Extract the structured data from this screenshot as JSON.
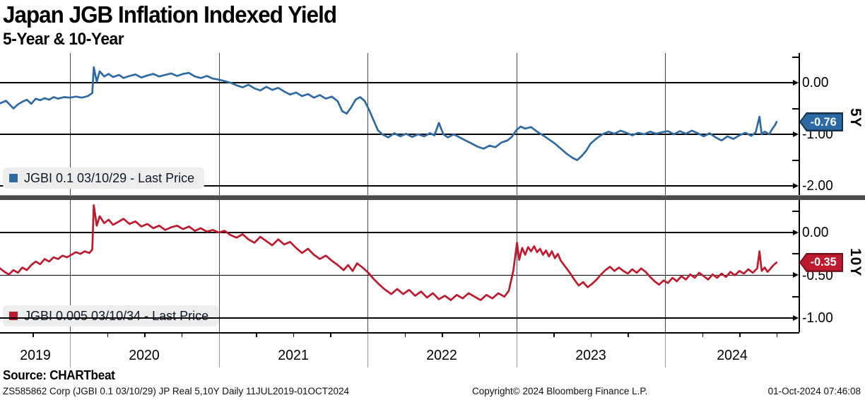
{
  "header": {
    "title": "Japan JGB Inflation Indexed Yield",
    "subtitle": "5-Year & 10-Year"
  },
  "footer": {
    "source": "Source: CHARTbeat",
    "meta": "ZS585862 Corp (JGBI 0.1 03/10/29) JP Real 5,10Y  Daily 11JUL2019-01OCT2024",
    "copyright": "Copyright© 2024 Bloomberg Finance L.P.",
    "datetime": "01-Oct-2024 07:46:08"
  },
  "colors": {
    "blue": "#2d6aa3",
    "blue_border": "#16314d",
    "red": "#bd1a2d",
    "red_border": "#7c0f1d",
    "grid_vertical": "#4a4a4a",
    "axis": "#000000",
    "legend_bg": "#ededed",
    "separator": "#4b4b4e"
  },
  "x_axis": {
    "year_labels": [
      "2019",
      "2020",
      "2021",
      "2022",
      "2023",
      "2024"
    ],
    "range_note": "11JUL2019-01OCT2024",
    "minor_tick_interval_years": 0.25
  },
  "chart_data": [
    {
      "type": "line",
      "panel": "top",
      "name": "JGBI 0.1 03/10/29 - Last Price",
      "axis_label": "5Y",
      "last_price": "-0.76",
      "color": "#2d6aa3",
      "ylim": [
        0.575,
        -2.18
      ],
      "y_ticks_major": [
        0.0,
        -1.0,
        -2.0
      ],
      "y_tick_labels": [
        "0.00",
        "-1.00",
        "-2.00"
      ],
      "y_ticks_minor": [
        0.5,
        -0.5,
        -1.5
      ],
      "points": [
        [
          2019.53,
          -0.4
        ],
        [
          2019.57,
          -0.35
        ],
        [
          2019.6,
          -0.44
        ],
        [
          2019.62,
          -0.5
        ],
        [
          2019.65,
          -0.42
        ],
        [
          2019.68,
          -0.37
        ],
        [
          2019.71,
          -0.33
        ],
        [
          2019.74,
          -0.41
        ],
        [
          2019.77,
          -0.31
        ],
        [
          2019.8,
          -0.34
        ],
        [
          2019.83,
          -0.3
        ],
        [
          2019.86,
          -0.33
        ],
        [
          2019.89,
          -0.28
        ],
        [
          2019.92,
          -0.31
        ],
        [
          2019.96,
          -0.28
        ],
        [
          2020.0,
          -0.29
        ],
        [
          2020.04,
          -0.27
        ],
        [
          2020.08,
          -0.29
        ],
        [
          2020.12,
          -0.26
        ],
        [
          2020.15,
          -0.2
        ],
        [
          2020.16,
          0.3
        ],
        [
          2020.18,
          0.02
        ],
        [
          2020.2,
          0.22
        ],
        [
          2020.23,
          0.12
        ],
        [
          2020.26,
          0.17
        ],
        [
          2020.29,
          0.11
        ],
        [
          2020.33,
          0.15
        ],
        [
          2020.36,
          0.09
        ],
        [
          2020.4,
          0.13
        ],
        [
          2020.44,
          0.16
        ],
        [
          2020.48,
          0.1
        ],
        [
          2020.52,
          0.14
        ],
        [
          2020.56,
          0.17
        ],
        [
          2020.6,
          0.12
        ],
        [
          2020.64,
          0.15
        ],
        [
          2020.68,
          0.18
        ],
        [
          2020.72,
          0.13
        ],
        [
          2020.76,
          0.17
        ],
        [
          2020.8,
          0.19
        ],
        [
          2020.84,
          0.12
        ],
        [
          2020.88,
          0.09
        ],
        [
          2020.92,
          0.13
        ],
        [
          2020.96,
          0.08
        ],
        [
          2021.0,
          0.06
        ],
        [
          2021.04,
          0.03
        ],
        [
          2021.08,
          0.0
        ],
        [
          2021.12,
          -0.05
        ],
        [
          2021.16,
          -0.09
        ],
        [
          2021.2,
          -0.04
        ],
        [
          2021.24,
          -0.11
        ],
        [
          2021.28,
          -0.15
        ],
        [
          2021.32,
          -0.08
        ],
        [
          2021.36,
          -0.14
        ],
        [
          2021.4,
          -0.1
        ],
        [
          2021.44,
          -0.17
        ],
        [
          2021.48,
          -0.23
        ],
        [
          2021.52,
          -0.19
        ],
        [
          2021.56,
          -0.26
        ],
        [
          2021.6,
          -0.22
        ],
        [
          2021.64,
          -0.29
        ],
        [
          2021.68,
          -0.24
        ],
        [
          2021.72,
          -0.31
        ],
        [
          2021.76,
          -0.27
        ],
        [
          2021.8,
          -0.36
        ],
        [
          2021.83,
          -0.55
        ],
        [
          2021.86,
          -0.6
        ],
        [
          2021.89,
          -0.48
        ],
        [
          2021.92,
          -0.33
        ],
        [
          2021.95,
          -0.28
        ],
        [
          2021.98,
          -0.35
        ],
        [
          2022.01,
          -0.52
        ],
        [
          2022.04,
          -0.72
        ],
        [
          2022.07,
          -0.92
        ],
        [
          2022.1,
          -1.0
        ],
        [
          2022.14,
          -1.06
        ],
        [
          2022.18,
          -0.98
        ],
        [
          2022.22,
          -1.04
        ],
        [
          2022.26,
          -0.99
        ],
        [
          2022.3,
          -1.05
        ],
        [
          2022.34,
          -1.0
        ],
        [
          2022.38,
          -1.04
        ],
        [
          2022.42,
          -0.98
        ],
        [
          2022.45,
          -1.02
        ],
        [
          2022.48,
          -0.78
        ],
        [
          2022.51,
          -1.0
        ],
        [
          2022.54,
          -1.06
        ],
        [
          2022.58,
          -1.0
        ],
        [
          2022.62,
          -1.06
        ],
        [
          2022.66,
          -1.12
        ],
        [
          2022.7,
          -1.18
        ],
        [
          2022.74,
          -1.24
        ],
        [
          2022.78,
          -1.28
        ],
        [
          2022.82,
          -1.22
        ],
        [
          2022.86,
          -1.25
        ],
        [
          2022.9,
          -1.16
        ],
        [
          2022.94,
          -1.12
        ],
        [
          2022.97,
          -1.05
        ],
        [
          2023.0,
          -0.92
        ],
        [
          2023.03,
          -0.85
        ],
        [
          2023.06,
          -0.89
        ],
        [
          2023.1,
          -0.86
        ],
        [
          2023.14,
          -0.95
        ],
        [
          2023.18,
          -1.02
        ],
        [
          2023.22,
          -1.1
        ],
        [
          2023.26,
          -1.18
        ],
        [
          2023.3,
          -1.28
        ],
        [
          2023.34,
          -1.38
        ],
        [
          2023.38,
          -1.46
        ],
        [
          2023.41,
          -1.5
        ],
        [
          2023.44,
          -1.42
        ],
        [
          2023.47,
          -1.32
        ],
        [
          2023.5,
          -1.18
        ],
        [
          2023.54,
          -1.08
        ],
        [
          2023.58,
          -1.0
        ],
        [
          2023.62,
          -0.95
        ],
        [
          2023.66,
          -0.99
        ],
        [
          2023.7,
          -0.93
        ],
        [
          2023.74,
          -0.97
        ],
        [
          2023.78,
          -1.02
        ],
        [
          2023.82,
          -0.97
        ],
        [
          2023.86,
          -1.0
        ],
        [
          2023.9,
          -0.95
        ],
        [
          2023.94,
          -0.99
        ],
        [
          2023.98,
          -0.96
        ],
        [
          2024.02,
          -0.94
        ],
        [
          2024.06,
          -1.0
        ],
        [
          2024.1,
          -0.94
        ],
        [
          2024.14,
          -0.99
        ],
        [
          2024.18,
          -0.93
        ],
        [
          2024.22,
          -0.98
        ],
        [
          2024.26,
          -1.04
        ],
        [
          2024.3,
          -0.98
        ],
        [
          2024.34,
          -1.06
        ],
        [
          2024.38,
          -1.12
        ],
        [
          2024.42,
          -1.04
        ],
        [
          2024.46,
          -1.09
        ],
        [
          2024.5,
          -1.02
        ],
        [
          2024.54,
          -0.97
        ],
        [
          2024.58,
          -1.03
        ],
        [
          2024.61,
          -0.96
        ],
        [
          2024.635,
          -0.66
        ],
        [
          2024.65,
          -1.0
        ],
        [
          2024.67,
          -0.95
        ],
        [
          2024.7,
          -1.0
        ],
        [
          2024.72,
          -0.9
        ],
        [
          2024.74,
          -0.82
        ],
        [
          2024.75,
          -0.76
        ]
      ]
    },
    {
      "type": "line",
      "panel": "bottom",
      "name": "JGBI 0.005 03/10/34 - Last Price",
      "axis_label": "10Y",
      "last_price": "-0.35",
      "color": "#bd1a2d",
      "ylim": [
        0.38,
        -1.17
      ],
      "y_ticks_major": [
        0.0,
        -0.5,
        -1.0
      ],
      "y_tick_labels": [
        "0.00",
        "-0.50",
        "-1.00"
      ],
      "y_ticks_minor": [
        0.25,
        -0.25,
        -0.75
      ],
      "points": [
        [
          2019.53,
          -0.42
        ],
        [
          2019.56,
          -0.46
        ],
        [
          2019.59,
          -0.49
        ],
        [
          2019.62,
          -0.44
        ],
        [
          2019.65,
          -0.47
        ],
        [
          2019.68,
          -0.41
        ],
        [
          2019.71,
          -0.44
        ],
        [
          2019.74,
          -0.38
        ],
        [
          2019.77,
          -0.34
        ],
        [
          2019.8,
          -0.37
        ],
        [
          2019.83,
          -0.31
        ],
        [
          2019.86,
          -0.34
        ],
        [
          2019.89,
          -0.29
        ],
        [
          2019.92,
          -0.31
        ],
        [
          2019.95,
          -0.27
        ],
        [
          2019.98,
          -0.29
        ],
        [
          2020.01,
          -0.26
        ],
        [
          2020.04,
          -0.23
        ],
        [
          2020.07,
          -0.25
        ],
        [
          2020.1,
          -0.22
        ],
        [
          2020.13,
          -0.24
        ],
        [
          2020.15,
          -0.2
        ],
        [
          2020.16,
          0.32
        ],
        [
          2020.18,
          0.08
        ],
        [
          2020.2,
          0.19
        ],
        [
          2020.23,
          0.11
        ],
        [
          2020.26,
          0.15
        ],
        [
          2020.29,
          0.09
        ],
        [
          2020.33,
          0.13
        ],
        [
          2020.36,
          0.16
        ],
        [
          2020.4,
          0.1
        ],
        [
          2020.44,
          0.13
        ],
        [
          2020.48,
          0.07
        ],
        [
          2020.52,
          0.1
        ],
        [
          2020.56,
          0.05
        ],
        [
          2020.6,
          0.08
        ],
        [
          2020.64,
          0.03
        ],
        [
          2020.68,
          0.06
        ],
        [
          2020.72,
          0.08
        ],
        [
          2020.76,
          0.04
        ],
        [
          2020.8,
          0.07
        ],
        [
          2020.84,
          0.02
        ],
        [
          2020.88,
          0.05
        ],
        [
          2020.92,
          0.01
        ],
        [
          2020.96,
          0.03
        ],
        [
          2021.0,
          0.0
        ],
        [
          2021.04,
          0.02
        ],
        [
          2021.08,
          -0.03
        ],
        [
          2021.12,
          -0.06
        ],
        [
          2021.16,
          -0.02
        ],
        [
          2021.2,
          -0.08
        ],
        [
          2021.24,
          -0.12
        ],
        [
          2021.28,
          -0.05
        ],
        [
          2021.32,
          -0.1
        ],
        [
          2021.36,
          -0.15
        ],
        [
          2021.4,
          -0.08
        ],
        [
          2021.44,
          -0.14
        ],
        [
          2021.48,
          -0.11
        ],
        [
          2021.52,
          -0.18
        ],
        [
          2021.56,
          -0.24
        ],
        [
          2021.6,
          -0.19
        ],
        [
          2021.64,
          -0.26
        ],
        [
          2021.68,
          -0.31
        ],
        [
          2021.72,
          -0.27
        ],
        [
          2021.76,
          -0.33
        ],
        [
          2021.8,
          -0.38
        ],
        [
          2021.84,
          -0.44
        ],
        [
          2021.87,
          -0.38
        ],
        [
          2021.9,
          -0.45
        ],
        [
          2021.93,
          -0.36
        ],
        [
          2021.96,
          -0.4
        ],
        [
          2022.0,
          -0.46
        ],
        [
          2022.04,
          -0.54
        ],
        [
          2022.08,
          -0.61
        ],
        [
          2022.12,
          -0.67
        ],
        [
          2022.16,
          -0.72
        ],
        [
          2022.2,
          -0.66
        ],
        [
          2022.24,
          -0.72
        ],
        [
          2022.28,
          -0.67
        ],
        [
          2022.32,
          -0.74
        ],
        [
          2022.36,
          -0.69
        ],
        [
          2022.4,
          -0.76
        ],
        [
          2022.44,
          -0.71
        ],
        [
          2022.48,
          -0.78
        ],
        [
          2022.52,
          -0.74
        ],
        [
          2022.56,
          -0.79
        ],
        [
          2022.6,
          -0.73
        ],
        [
          2022.64,
          -0.77
        ],
        [
          2022.68,
          -0.71
        ],
        [
          2022.72,
          -0.75
        ],
        [
          2022.76,
          -0.79
        ],
        [
          2022.8,
          -0.73
        ],
        [
          2022.84,
          -0.77
        ],
        [
          2022.88,
          -0.71
        ],
        [
          2022.92,
          -0.75
        ],
        [
          2022.95,
          -0.68
        ],
        [
          2022.98,
          -0.45
        ],
        [
          2023.005,
          -0.12
        ],
        [
          2023.02,
          -0.32
        ],
        [
          2023.04,
          -0.18
        ],
        [
          2023.06,
          -0.26
        ],
        [
          2023.08,
          -0.17
        ],
        [
          2023.1,
          -0.22
        ],
        [
          2023.12,
          -0.16
        ],
        [
          2023.14,
          -0.23
        ],
        [
          2023.16,
          -0.19
        ],
        [
          2023.18,
          -0.26
        ],
        [
          2023.2,
          -0.21
        ],
        [
          2023.22,
          -0.28
        ],
        [
          2023.24,
          -0.22
        ],
        [
          2023.26,
          -0.3
        ],
        [
          2023.28,
          -0.25
        ],
        [
          2023.3,
          -0.33
        ],
        [
          2023.33,
          -0.4
        ],
        [
          2023.36,
          -0.47
        ],
        [
          2023.39,
          -0.55
        ],
        [
          2023.42,
          -0.62
        ],
        [
          2023.45,
          -0.58
        ],
        [
          2023.48,
          -0.64
        ],
        [
          2023.51,
          -0.6
        ],
        [
          2023.54,
          -0.55
        ],
        [
          2023.57,
          -0.49
        ],
        [
          2023.6,
          -0.44
        ],
        [
          2023.63,
          -0.4
        ],
        [
          2023.66,
          -0.45
        ],
        [
          2023.69,
          -0.41
        ],
        [
          2023.72,
          -0.45
        ],
        [
          2023.75,
          -0.48
        ],
        [
          2023.78,
          -0.43
        ],
        [
          2023.81,
          -0.47
        ],
        [
          2023.84,
          -0.42
        ],
        [
          2023.87,
          -0.46
        ],
        [
          2023.9,
          -0.52
        ],
        [
          2023.93,
          -0.57
        ],
        [
          2023.96,
          -0.61
        ],
        [
          2023.99,
          -0.56
        ],
        [
          2024.02,
          -0.59
        ],
        [
          2024.05,
          -0.53
        ],
        [
          2024.08,
          -0.57
        ],
        [
          2024.11,
          -0.51
        ],
        [
          2024.14,
          -0.55
        ],
        [
          2024.17,
          -0.49
        ],
        [
          2024.2,
          -0.53
        ],
        [
          2024.23,
          -0.47
        ],
        [
          2024.26,
          -0.51
        ],
        [
          2024.29,
          -0.55
        ],
        [
          2024.32,
          -0.49
        ],
        [
          2024.35,
          -0.53
        ],
        [
          2024.38,
          -0.48
        ],
        [
          2024.41,
          -0.52
        ],
        [
          2024.44,
          -0.46
        ],
        [
          2024.47,
          -0.5
        ],
        [
          2024.5,
          -0.45
        ],
        [
          2024.53,
          -0.48
        ],
        [
          2024.56,
          -0.43
        ],
        [
          2024.59,
          -0.47
        ],
        [
          2024.62,
          -0.42
        ],
        [
          2024.635,
          -0.22
        ],
        [
          2024.65,
          -0.45
        ],
        [
          2024.67,
          -0.41
        ],
        [
          2024.69,
          -0.46
        ],
        [
          2024.71,
          -0.42
        ],
        [
          2024.73,
          -0.38
        ],
        [
          2024.75,
          -0.35
        ]
      ]
    }
  ]
}
